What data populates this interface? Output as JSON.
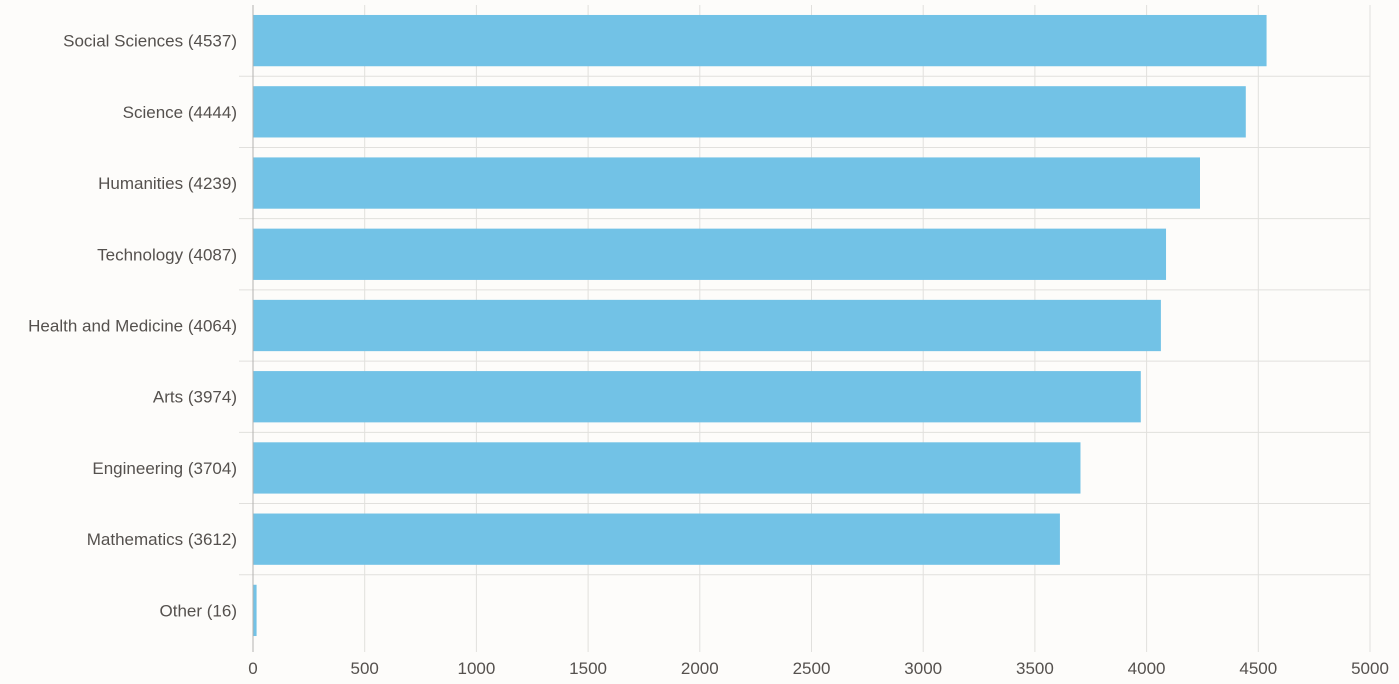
{
  "chart_data": {
    "type": "bar",
    "orientation": "horizontal",
    "categories": [
      "Social Sciences (4537)",
      "Science (4444)",
      "Humanities (4239)",
      "Technology (4087)",
      "Health and Medicine (4064)",
      "Arts (3974)",
      "Engineering (3704)",
      "Mathematics (3612)",
      "Other (16)"
    ],
    "values": [
      4537,
      4444,
      4239,
      4087,
      4064,
      3974,
      3704,
      3612,
      16
    ],
    "xlim": [
      0,
      5000
    ],
    "x_ticks": [
      "0",
      "500",
      "1000",
      "1500",
      "2000",
      "2500",
      "3000",
      "3500",
      "4000",
      "4500",
      "5000"
    ],
    "grid": true,
    "colors": {
      "bar": "#72c2e6",
      "grid": "#e1e0dd",
      "axis": "#b3b2b0",
      "label": "#55514e",
      "background": "#fdfcfa"
    }
  }
}
